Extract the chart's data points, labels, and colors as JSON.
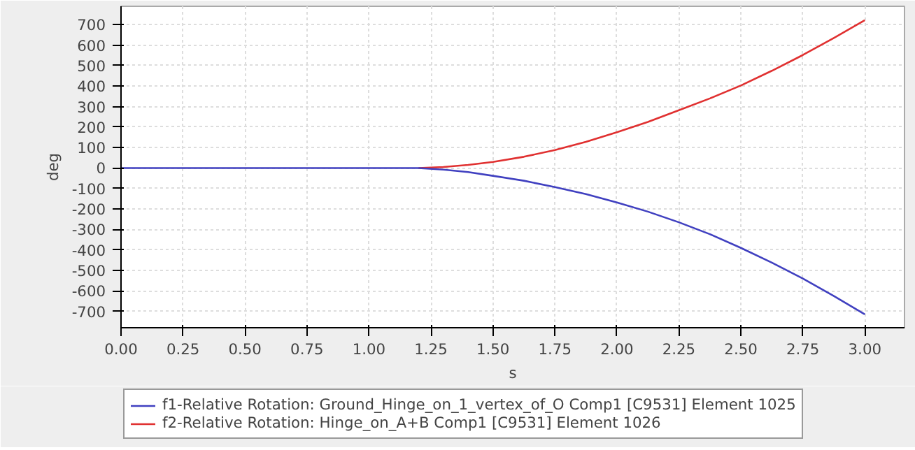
{
  "chart_data": {
    "type": "line",
    "xlabel": "s",
    "ylabel": "deg",
    "xlim": [
      0,
      3.16
    ],
    "ylim": [
      -780,
      790
    ],
    "xticks": [
      {
        "value": 0,
        "label": "0.00"
      },
      {
        "value": 0.25,
        "label": "0.25"
      },
      {
        "value": 0.5,
        "label": "0.50"
      },
      {
        "value": 0.75,
        "label": "0.75"
      },
      {
        "value": 1,
        "label": "1.00"
      },
      {
        "value": 1.25,
        "label": "1.25"
      },
      {
        "value": 1.5,
        "label": "1.50"
      },
      {
        "value": 1.75,
        "label": "1.75"
      },
      {
        "value": 2,
        "label": "2.00"
      },
      {
        "value": 2.25,
        "label": "2.25"
      },
      {
        "value": 2.5,
        "label": "2.50"
      },
      {
        "value": 2.75,
        "label": "2.75"
      },
      {
        "value": 3,
        "label": "3.00"
      }
    ],
    "yticks": [
      -700,
      -600,
      -500,
      -400,
      -300,
      -200,
      -100,
      0,
      100,
      200,
      300,
      400,
      500,
      600,
      700
    ],
    "x": [
      0,
      0.5,
      1.0,
      1.2,
      1.3,
      1.4,
      1.5,
      1.625,
      1.75,
      1.875,
      2.0,
      2.125,
      2.25,
      2.375,
      2.5,
      2.625,
      2.75,
      2.875,
      3.0
    ],
    "series": [
      {
        "name": "f1-Relative Rotation: Ground_Hinge_on_1_vertex_of_O Comp1 [C9531] Element 1025",
        "color": "#4040c0",
        "values": [
          0,
          0,
          0,
          0,
          -8,
          -20,
          -38,
          -62,
          -93,
          -127,
          -168,
          -213,
          -265,
          -323,
          -390,
          -462,
          -540,
          -625,
          -715
        ]
      },
      {
        "name": "f2-Relative Rotation: Hinge_on_A+B Comp1 [C9531] Element 1026",
        "color": "#e03030",
        "values": [
          null,
          null,
          null,
          0,
          5,
          15,
          30,
          55,
          88,
          128,
          175,
          225,
          282,
          340,
          403,
          475,
          552,
          635,
          722
        ]
      }
    ],
    "grid": true,
    "legend": "bottom",
    "line_style": "solid",
    "marker": "none"
  }
}
